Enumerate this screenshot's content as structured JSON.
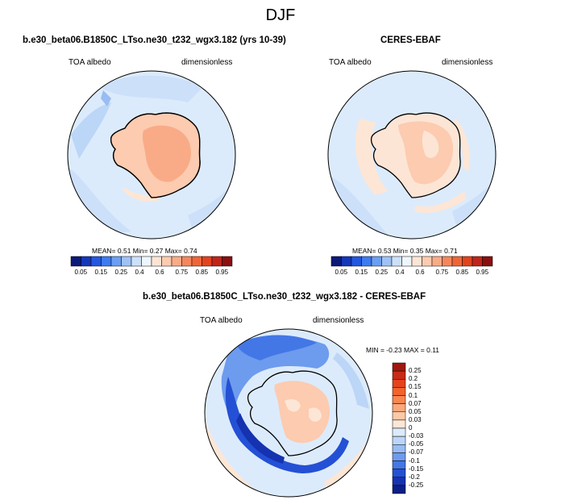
{
  "main_title": "DJF",
  "left_panel": {
    "title": "b.e30_beta06.B1850C_LTso.ne30_t232_wgx3.182 (yrs 10-39)",
    "variable": "TOA albedo",
    "units": "dimensionless",
    "stats": "MEAN=   0.51  Min=   0.27  Max=   0.74"
  },
  "right_panel": {
    "title": "CERES-EBAF",
    "variable": "TOA albedo",
    "units": "dimensionless",
    "stats": "MEAN=   0.53  Min=   0.35  Max=   0.71"
  },
  "abs_colorbar": {
    "ticks": [
      "0.05",
      "0.15",
      "0.25",
      "0.4",
      "0.6",
      "0.75",
      "0.85",
      "0.95"
    ],
    "colors": [
      "#0c1a7a",
      "#1438b8",
      "#2357e0",
      "#3d7bf0",
      "#6a9ff3",
      "#9fc2f6",
      "#cde0fa",
      "#eef6fd",
      "#fde5d6",
      "#fccbb0",
      "#f9ab87",
      "#f4875c",
      "#ee6638",
      "#e1431f",
      "#c0251a",
      "#8a0f10"
    ]
  },
  "diff_panel": {
    "title": "b.e30_beta06.B1850C_LTso.ne30_t232_wgx3.182 - CERES-EBAF",
    "variable": "TOA albedo",
    "units": "dimensionless",
    "stats": "MIN =  -0.23 MAX =   0.11"
  },
  "diff_colorbar": {
    "ticks": [
      "0.25",
      "0.2",
      "0.15",
      "0.1",
      "0.07",
      "0.05",
      "0.03",
      "0",
      "-0.03",
      "-0.05",
      "-0.07",
      "-0.1",
      "-0.15",
      "-0.2",
      "-0.25"
    ],
    "colors": [
      "#a0170f",
      "#c82a16",
      "#e4431c",
      "#f2622c",
      "#f78650",
      "#fba87a",
      "#fdc8a6",
      "#fde6d5",
      "#dcebfb",
      "#bcd6f7",
      "#98bcf3",
      "#6d9bee",
      "#4377e6",
      "#2450d5",
      "#1532b0",
      "#0c1f86"
    ]
  }
}
